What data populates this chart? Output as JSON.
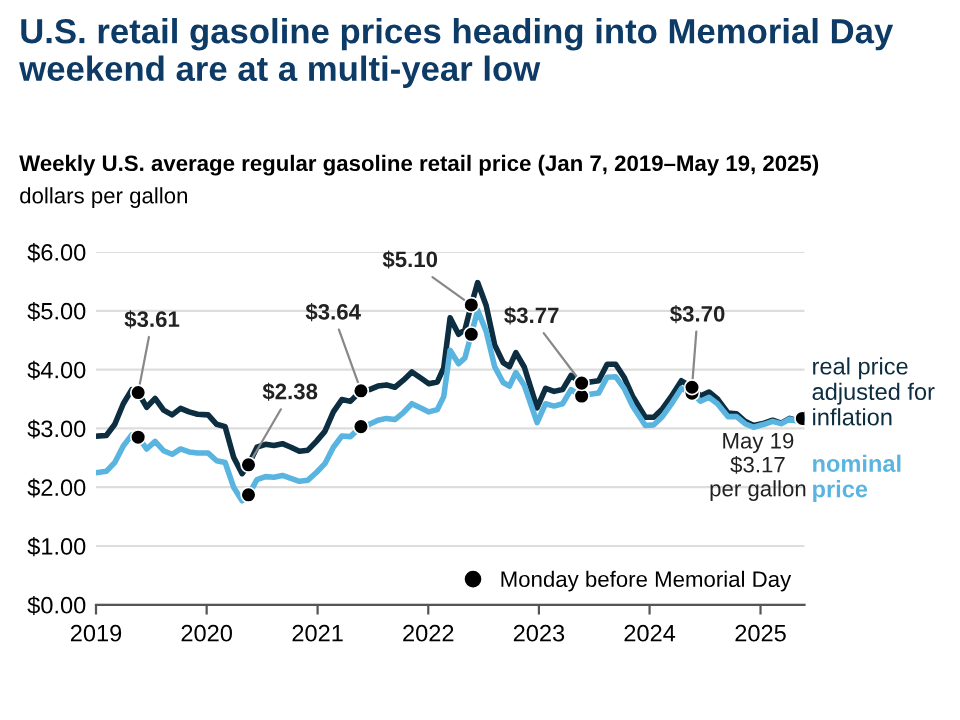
{
  "chart_data": {
    "type": "line",
    "title": "U.S. retail gasoline prices heading into Memorial Day weekend are at a multi-year low",
    "subtitle": "Weekly U.S. average regular gasoline retail price (Jan 7, 2019–May 19, 2025)",
    "ylabel": "dollars per gallon",
    "x": [
      "2019-01-07",
      "2019-02-04",
      "2019-03-04",
      "2019-04-01",
      "2019-04-29",
      "2019-05-20",
      "2019-06-17",
      "2019-07-15",
      "2019-08-12",
      "2019-09-09",
      "2019-10-07",
      "2019-11-04",
      "2019-12-02",
      "2020-01-06",
      "2020-02-03",
      "2020-03-02",
      "2020-03-30",
      "2020-04-27",
      "2020-05-18",
      "2020-06-15",
      "2020-07-13",
      "2020-08-10",
      "2020-09-07",
      "2020-10-05",
      "2020-11-02",
      "2020-11-30",
      "2020-12-28",
      "2021-01-25",
      "2021-02-22",
      "2021-03-22",
      "2021-04-19",
      "2021-05-24",
      "2021-06-21",
      "2021-07-19",
      "2021-08-16",
      "2021-09-13",
      "2021-10-11",
      "2021-11-08",
      "2021-12-06",
      "2022-01-03",
      "2022-01-31",
      "2022-02-21",
      "2022-03-14",
      "2022-04-11",
      "2022-05-02",
      "2022-05-23",
      "2022-06-13",
      "2022-07-11",
      "2022-08-08",
      "2022-09-05",
      "2022-09-26",
      "2022-10-17",
      "2022-11-14",
      "2022-12-26",
      "2023-01-23",
      "2023-02-20",
      "2023-03-20",
      "2023-04-17",
      "2023-05-22",
      "2023-06-19",
      "2023-07-17",
      "2023-08-14",
      "2023-09-11",
      "2023-10-09",
      "2023-11-06",
      "2023-12-18",
      "2024-01-15",
      "2024-02-12",
      "2024-03-11",
      "2024-04-15",
      "2024-05-20",
      "2024-06-17",
      "2024-07-15",
      "2024-08-12",
      "2024-09-16",
      "2024-10-14",
      "2024-11-11",
      "2024-12-09",
      "2025-01-13",
      "2025-02-10",
      "2025-03-10",
      "2025-04-07",
      "2025-04-28",
      "2025-05-19"
    ],
    "series": [
      {
        "name": "real price adjusted for inflation",
        "color": "#0d2d40",
        "values": [
          2.87,
          2.88,
          3.07,
          3.42,
          3.66,
          3.61,
          3.36,
          3.51,
          3.31,
          3.23,
          3.34,
          3.28,
          3.24,
          3.23,
          3.07,
          3.03,
          2.51,
          2.23,
          2.38,
          2.68,
          2.73,
          2.71,
          2.74,
          2.68,
          2.61,
          2.63,
          2.78,
          2.95,
          3.28,
          3.49,
          3.46,
          3.64,
          3.66,
          3.72,
          3.74,
          3.7,
          3.82,
          3.96,
          3.86,
          3.76,
          3.79,
          4.03,
          4.88,
          4.6,
          4.68,
          5.1,
          5.48,
          5.09,
          4.42,
          4.12,
          4.05,
          4.29,
          4.04,
          3.35,
          3.68,
          3.63,
          3.66,
          3.9,
          3.77,
          3.79,
          3.81,
          4.09,
          4.09,
          3.87,
          3.55,
          3.19,
          3.19,
          3.33,
          3.53,
          3.81,
          3.7,
          3.55,
          3.62,
          3.5,
          3.26,
          3.25,
          3.12,
          3.05,
          3.09,
          3.14,
          3.09,
          3.17,
          3.14,
          3.17
        ]
      },
      {
        "name": "nominal price",
        "color": "#5ab4e0",
        "values": [
          2.25,
          2.27,
          2.42,
          2.7,
          2.89,
          2.85,
          2.65,
          2.78,
          2.62,
          2.56,
          2.65,
          2.6,
          2.58,
          2.58,
          2.45,
          2.42,
          2.0,
          1.77,
          1.87,
          2.13,
          2.18,
          2.17,
          2.2,
          2.15,
          2.1,
          2.12,
          2.25,
          2.4,
          2.68,
          2.87,
          2.86,
          3.03,
          3.07,
          3.14,
          3.17,
          3.15,
          3.27,
          3.42,
          3.35,
          3.28,
          3.32,
          3.54,
          4.33,
          4.1,
          4.2,
          4.6,
          5.01,
          4.65,
          4.05,
          3.78,
          3.72,
          3.95,
          3.73,
          3.1,
          3.42,
          3.38,
          3.42,
          3.66,
          3.55,
          3.58,
          3.6,
          3.87,
          3.88,
          3.68,
          3.38,
          3.05,
          3.06,
          3.2,
          3.4,
          3.68,
          3.6,
          3.46,
          3.53,
          3.42,
          3.2,
          3.2,
          3.08,
          3.02,
          3.07,
          3.12,
          3.08,
          3.16,
          3.13,
          3.17
        ]
      },
      {
        "name": "Monday before Memorial Day",
        "type": "scatter",
        "color": "#000000",
        "marker": "circle",
        "x": [
          "2019-05-20",
          "2020-05-18",
          "2021-05-24",
          "2022-05-23",
          "2023-05-22",
          "2024-05-20",
          "2025-05-19",
          "2019-05-20",
          "2020-05-18",
          "2021-05-24",
          "2022-05-23",
          "2023-05-22",
          "2024-05-20"
        ],
        "values": [
          3.61,
          2.38,
          3.64,
          5.1,
          3.77,
          3.7,
          3.17,
          2.85,
          1.87,
          3.03,
          4.6,
          3.55,
          3.6
        ]
      }
    ],
    "annotations": [
      {
        "text": "$3.61",
        "x": "2019-05-20",
        "y": 3.61
      },
      {
        "text": "$2.38",
        "x": "2020-05-18",
        "y": 2.38
      },
      {
        "text": "$3.64",
        "x": "2021-05-24",
        "y": 3.64
      },
      {
        "text": "$5.10",
        "x": "2022-05-23",
        "y": 5.1
      },
      {
        "text": "$3.77",
        "x": "2023-05-22",
        "y": 3.77
      },
      {
        "text": "$3.70",
        "x": "2024-05-20",
        "y": 3.7
      },
      {
        "text": "May 19\n$3.17\nper gallon",
        "x": "2025-05-19",
        "y": 3.17
      }
    ],
    "xlim": [
      "2019-01-01",
      "2025-05-26"
    ],
    "xticks": [
      {
        "value": "2019-01-01",
        "label": "2019"
      },
      {
        "value": "2020-01-01",
        "label": "2020"
      },
      {
        "value": "2021-01-01",
        "label": "2021"
      },
      {
        "value": "2022-01-01",
        "label": "2022"
      },
      {
        "value": "2023-01-01",
        "label": "2023"
      },
      {
        "value": "2024-01-01",
        "label": "2024"
      },
      {
        "value": "2025-01-01",
        "label": "2025"
      }
    ],
    "ylim": [
      0,
      6
    ],
    "yticks": [
      {
        "value": 0,
        "label": "$0.00"
      },
      {
        "value": 1,
        "label": "$1.00"
      },
      {
        "value": 2,
        "label": "$2.00"
      },
      {
        "value": 3,
        "label": "$3.00"
      },
      {
        "value": 4,
        "label": "$4.00"
      },
      {
        "value": 5,
        "label": "$5.00"
      },
      {
        "value": 6,
        "label": "$6.00"
      }
    ],
    "grid": "y",
    "legend": "bottom right",
    "line_style": "solid"
  }
}
